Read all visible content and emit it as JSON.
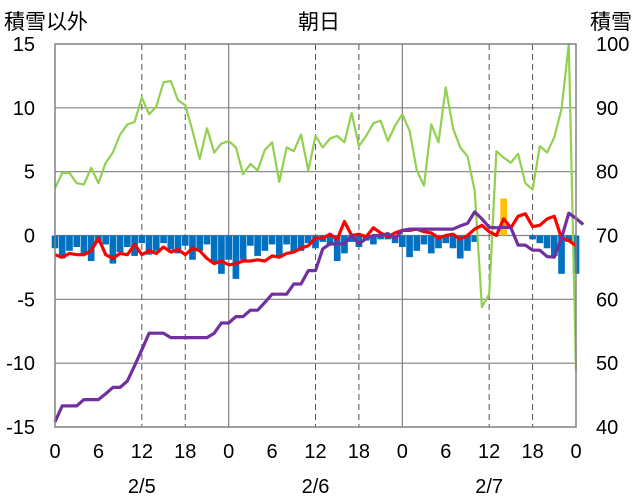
{
  "chart_data": {
    "type": "line",
    "title": "朝日",
    "left_axis_label": "積雪以外",
    "right_axis_label": "積雪",
    "left_axis": {
      "ylim": [
        -15,
        15
      ],
      "ticks": [
        15,
        10,
        5,
        0,
        -5,
        -10,
        -15
      ]
    },
    "right_axis": {
      "ylim": [
        40,
        100
      ],
      "ticks": [
        100,
        90,
        80,
        70,
        60,
        50,
        40
      ]
    },
    "x_hours": {
      "range": [
        0,
        72
      ],
      "tick_values": [
        0,
        6,
        12,
        18,
        24,
        30,
        36,
        42,
        48,
        54,
        60,
        66,
        72
      ],
      "tick_labels": [
        "0",
        "6",
        "12",
        "18",
        "0",
        "6",
        "12",
        "18",
        "0",
        "6",
        "12",
        "18",
        "0"
      ]
    },
    "date_labels": [
      {
        "hour": 12,
        "text": "2/5"
      },
      {
        "hour": 36,
        "text": "2/6"
      },
      {
        "hour": 60,
        "text": "2/7"
      }
    ],
    "grid": {
      "dashed_vertical_hours": [
        12,
        18,
        36,
        42,
        60,
        66
      ],
      "solid_vertical_hours": [
        24,
        48
      ],
      "solid_horizontal_left": [
        10,
        5,
        0,
        -5,
        -10
      ]
    },
    "colors": {
      "precip": "#0070c0",
      "precip_positive": "#ffc000",
      "green": "#92d050",
      "red": "#ff0000",
      "purple": "#7030a0",
      "axis": "#808080"
    },
    "series": [
      {
        "kind": "bar",
        "axis": "left",
        "values": [
          -1.0,
          -1.8,
          -1.2,
          -0.9,
          -1.5,
          -2.0,
          -0.6,
          -0.7,
          -2.2,
          -1.3,
          -0.9,
          -1.6,
          -0.6,
          -1.5,
          -1.2,
          -0.6,
          -1.1,
          -1.4,
          -0.8,
          -1.9,
          -1.2,
          -0.7,
          -2.2,
          -3.0,
          -1.9,
          -3.4,
          -1.9,
          -0.8,
          -1.6,
          -1.2,
          -0.7,
          -1.6,
          -0.7,
          -1.3,
          -1.2,
          -0.6,
          -1.0,
          -0.5,
          -0.8,
          -2.0,
          -1.4,
          -0.5,
          -0.9,
          -0.4,
          -0.7,
          -0.3,
          -0.3,
          -0.6,
          -0.9,
          -1.7,
          -1.2,
          -0.7,
          -1.4,
          -1.0,
          -0.6,
          -1.0,
          -1.8,
          -1.2,
          -0.5,
          0,
          0,
          0,
          2.9,
          0,
          0,
          0,
          -0.3,
          -0.6,
          -1.0,
          -1.6,
          -3.0,
          -0.5,
          -3.0
        ]
      },
      {
        "kind": "line",
        "axis": "left",
        "values": [
          3.7,
          4.9,
          4.9,
          4.1,
          4.0,
          5.3,
          4.1,
          5.7,
          6.5,
          7.9,
          8.7,
          8.9,
          10.8,
          9.5,
          10.1,
          12.0,
          12.1,
          10.6,
          10.2,
          8.2,
          6.0,
          8.4,
          6.5,
          7.2,
          7.4,
          6.9,
          4.8,
          5.6,
          5.1,
          6.7,
          7.3,
          4.2,
          6.9,
          6.6,
          7.9,
          5.1,
          7.8,
          6.9,
          7.6,
          7.8,
          7.3,
          9.6,
          7.0,
          7.8,
          8.8,
          9.0,
          7.4,
          8.6,
          9.5,
          8.2,
          5.1,
          3.9,
          8.7,
          7.3,
          11.6,
          8.4,
          6.9,
          6.2,
          3.5,
          -5.6,
          -4.6,
          6.6,
          6.1,
          5.7,
          6.4,
          4.1,
          3.6,
          7.0,
          6.5,
          7.7,
          9.9,
          15.0,
          -10.6
        ]
      },
      {
        "kind": "line",
        "axis": "left",
        "values": [
          -1.5,
          -1.7,
          -1.4,
          -1.5,
          -1.5,
          -1.2,
          -0.2,
          -1.5,
          -1.8,
          -1.4,
          -1.5,
          -0.7,
          -1.5,
          -1.2,
          -1.4,
          -0.9,
          -1.3,
          -1.1,
          -1.5,
          -1.0,
          -1.2,
          -1.8,
          -2.2,
          -2.0,
          -2.3,
          -2.2,
          -2.0,
          -2.0,
          -1.9,
          -2.0,
          -1.6,
          -1.7,
          -1.4,
          -1.3,
          -1.0,
          -0.8,
          -0.2,
          -0.2,
          0.1,
          -0.3,
          1.1,
          0.0,
          0.1,
          -0.1,
          0.6,
          0.2,
          -0.1,
          0.2,
          0.4,
          0.4,
          0.5,
          0.3,
          0.2,
          -0.2,
          0.0,
          0.1,
          -0.3,
          0.0,
          0.5,
          0.8,
          0.3,
          0.0,
          1.3,
          0.6,
          1.5,
          1.7,
          0.7,
          0.8,
          1.3,
          1.5,
          -0.2,
          -0.4,
          -0.8
        ]
      },
      {
        "kind": "line",
        "axis": "right",
        "values": [
          40.8,
          43.3,
          43.3,
          43.3,
          44.3,
          44.3,
          44.3,
          45.2,
          46.2,
          46.2,
          47.2,
          49.6,
          52.1,
          54.7,
          54.7,
          54.7,
          54.0,
          54.0,
          54.0,
          54.0,
          54.0,
          54.0,
          54.7,
          56.3,
          56.3,
          57.3,
          57.3,
          58.3,
          58.3,
          59.5,
          60.8,
          60.8,
          60.8,
          62.4,
          62.4,
          64.5,
          64.5,
          67.9,
          68.7,
          68.7,
          68.7,
          70.0,
          68.7,
          69.5,
          70.0,
          70.0,
          70.3,
          69.5,
          70.8,
          71.0,
          71.0,
          71.0,
          71.0,
          71.0,
          71.0,
          71.0,
          71.5,
          71.9,
          73.7,
          72.6,
          71.3,
          71.2,
          71.3,
          71.2,
          68.5,
          68.5,
          67.7,
          67.7,
          66.7,
          66.6,
          69.6,
          73.5,
          72.7,
          71.7
        ]
      }
    ]
  }
}
